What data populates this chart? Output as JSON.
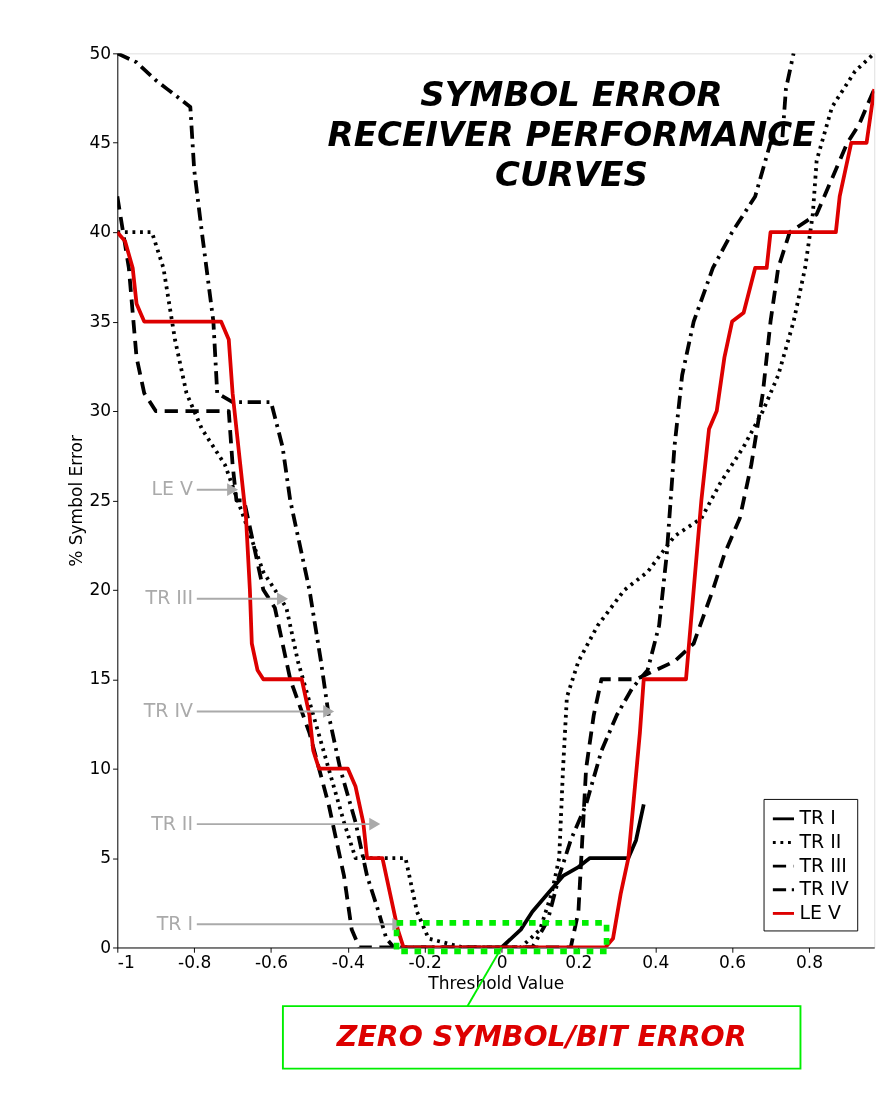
{
  "chart_data": {
    "type": "line",
    "title": "SYMBOL ERROR\nRECEIVER PERFORMANCE\nCURVES",
    "xlabel": "Threshold Value",
    "ylabel": "% Symbol Error",
    "xlim": [
      -1,
      0.97
    ],
    "ylim": [
      0,
      50
    ],
    "xticks": [
      -1,
      -0.8,
      -0.6,
      -0.4,
      -0.2,
      0,
      0.2,
      0.4,
      0.6,
      0.8
    ],
    "yticks": [
      0,
      5,
      10,
      15,
      20,
      25,
      30,
      35,
      40,
      45,
      50
    ],
    "grid": false,
    "legend": "bottom right",
    "series": [
      {
        "name": "TR I",
        "color": "#000000",
        "line_style": "solid",
        "x": [
          0.0,
          0.05,
          0.08,
          0.12,
          0.16,
          0.2,
          0.23,
          0.33,
          0.35,
          0.37
        ],
        "values": [
          0,
          1,
          2,
          3,
          4,
          4.5,
          5,
          5,
          6,
          8
        ]
      },
      {
        "name": "TR II",
        "color": "#000000",
        "line_style": "dotted",
        "x": [
          -1,
          -0.91,
          -0.88,
          -0.85,
          -0.82,
          -0.78,
          -0.72,
          -0.67,
          -0.62,
          -0.59,
          -0.56,
          -0.53,
          -0.49,
          -0.45,
          -0.41,
          -0.38,
          -0.25,
          -0.22,
          -0.19,
          -0.1,
          0.05,
          0.1,
          0.13,
          0.15,
          0.16,
          0.17,
          0.2,
          0.25,
          0.32,
          0.38,
          0.45,
          0.52,
          0.57,
          0.63,
          0.68,
          0.72,
          0.76,
          0.79,
          0.81,
          0.82,
          0.86,
          0.92,
          0.97
        ],
        "values": [
          40,
          40,
          38,
          34,
          31,
          29,
          27,
          24,
          21,
          20,
          19,
          16,
          13,
          10,
          7,
          5,
          5,
          2,
          0.5,
          0,
          0,
          1,
          3,
          5,
          10,
          14,
          16,
          18,
          20,
          21,
          23,
          24,
          26,
          28,
          30,
          32,
          35,
          38,
          41,
          44,
          47,
          49,
          50
        ]
      },
      {
        "name": "TR III",
        "color": "#000000",
        "line_style": "dashed",
        "x": [
          -1,
          -0.97,
          -0.95,
          -0.93,
          -0.9,
          -0.87,
          -0.71,
          -0.7,
          -0.69,
          -0.67,
          -0.62,
          -0.59,
          -0.55,
          -0.5,
          -0.45,
          -0.41,
          -0.39,
          -0.37,
          0.18,
          0.2,
          0.21,
          0.22,
          0.24,
          0.26,
          0.35,
          0.4,
          0.45,
          0.5,
          0.55,
          0.58,
          0.62,
          0.65,
          0.68,
          0.7,
          0.72,
          0.75,
          0.82,
          0.86,
          0.9,
          0.93,
          0.97
        ],
        "values": [
          42,
          38,
          33,
          31,
          30,
          30,
          30,
          27,
          25,
          25,
          20,
          19,
          15,
          12,
          8,
          4,
          1,
          0,
          0,
          2,
          6,
          10,
          13,
          15,
          15,
          15.5,
          16,
          17,
          20,
          22,
          24,
          27,
          31,
          35,
          38,
          40,
          41,
          43,
          45,
          46,
          48
        ]
      },
      {
        "name": "TR IV",
        "color": "#000000",
        "line_style": "dashdot",
        "x": [
          -1,
          -0.95,
          -0.9,
          -0.87,
          -0.81,
          -0.8,
          -0.78,
          -0.75,
          -0.74,
          -0.7,
          -0.6,
          -0.57,
          -0.55,
          -0.52,
          -0.5,
          -0.47,
          -0.45,
          -0.42,
          -0.38,
          -0.35,
          -0.32,
          -0.3,
          -0.28,
          0.08,
          0.12,
          0.15,
          0.18,
          0.22,
          0.26,
          0.3,
          0.34,
          0.38,
          0.41,
          0.43,
          0.44,
          0.45,
          0.47,
          0.5,
          0.55,
          0.6,
          0.66,
          0.7,
          0.73,
          0.74,
          0.76
        ],
        "values": [
          50,
          49.5,
          48.5,
          48,
          47,
          43.5,
          40,
          35,
          31,
          30.5,
          30.5,
          28,
          25,
          22,
          20,
          16,
          13,
          10,
          7,
          4,
          2,
          0.5,
          0,
          0,
          1.5,
          4,
          6,
          8,
          11,
          13,
          14.5,
          15.5,
          18,
          22,
          25,
          28,
          32,
          35,
          38,
          40,
          42,
          45,
          45,
          48,
          50
        ]
      },
      {
        "name": "LE V",
        "color": "#dd0000",
        "line_style": "solid",
        "x": [
          -1,
          -0.98,
          -0.96,
          -0.95,
          -0.94,
          -0.93,
          -0.73,
          -0.71,
          -0.7,
          -0.68,
          -0.665,
          -0.655,
          -0.65,
          -0.635,
          -0.62,
          -0.52,
          -0.5,
          -0.49,
          -0.475,
          -0.4,
          -0.38,
          -0.36,
          -0.35,
          -0.31,
          -0.29,
          -0.27,
          -0.255,
          0.27,
          0.29,
          0.31,
          0.33,
          0.36,
          0.37,
          0.48,
          0.5,
          0.52,
          0.54,
          0.56,
          0.58,
          0.6,
          0.63,
          0.66,
          0.69,
          0.7,
          0.87,
          0.88,
          0.91,
          0.95,
          0.97
        ],
        "values": [
          40,
          39.5,
          38,
          36,
          35.5,
          35,
          35,
          34,
          31,
          27,
          24,
          20,
          17,
          15.5,
          15,
          15,
          13,
          11,
          10,
          10,
          9,
          7,
          5,
          5,
          3,
          1,
          0,
          0,
          0.5,
          3,
          5,
          12,
          15,
          15,
          20,
          25,
          29,
          30,
          33,
          35,
          35.5,
          38,
          38,
          40,
          40,
          42,
          45,
          45,
          48
        ]
      }
    ],
    "annotations": [
      {
        "text": "LE V",
        "x": -0.7,
        "y": 25.6
      },
      {
        "text": "TR III",
        "x": -0.57,
        "y": 19.5
      },
      {
        "text": "TR IV",
        "x": -0.45,
        "y": 13.2
      },
      {
        "text": "TR II",
        "x": -0.33,
        "y": 6.9
      },
      {
        "text": "TR I",
        "x": -0.27,
        "y": 1.3
      },
      {
        "text": "ZERO SYMBOL/BIT ERROR",
        "x": 0,
        "y": 0
      }
    ]
  }
}
